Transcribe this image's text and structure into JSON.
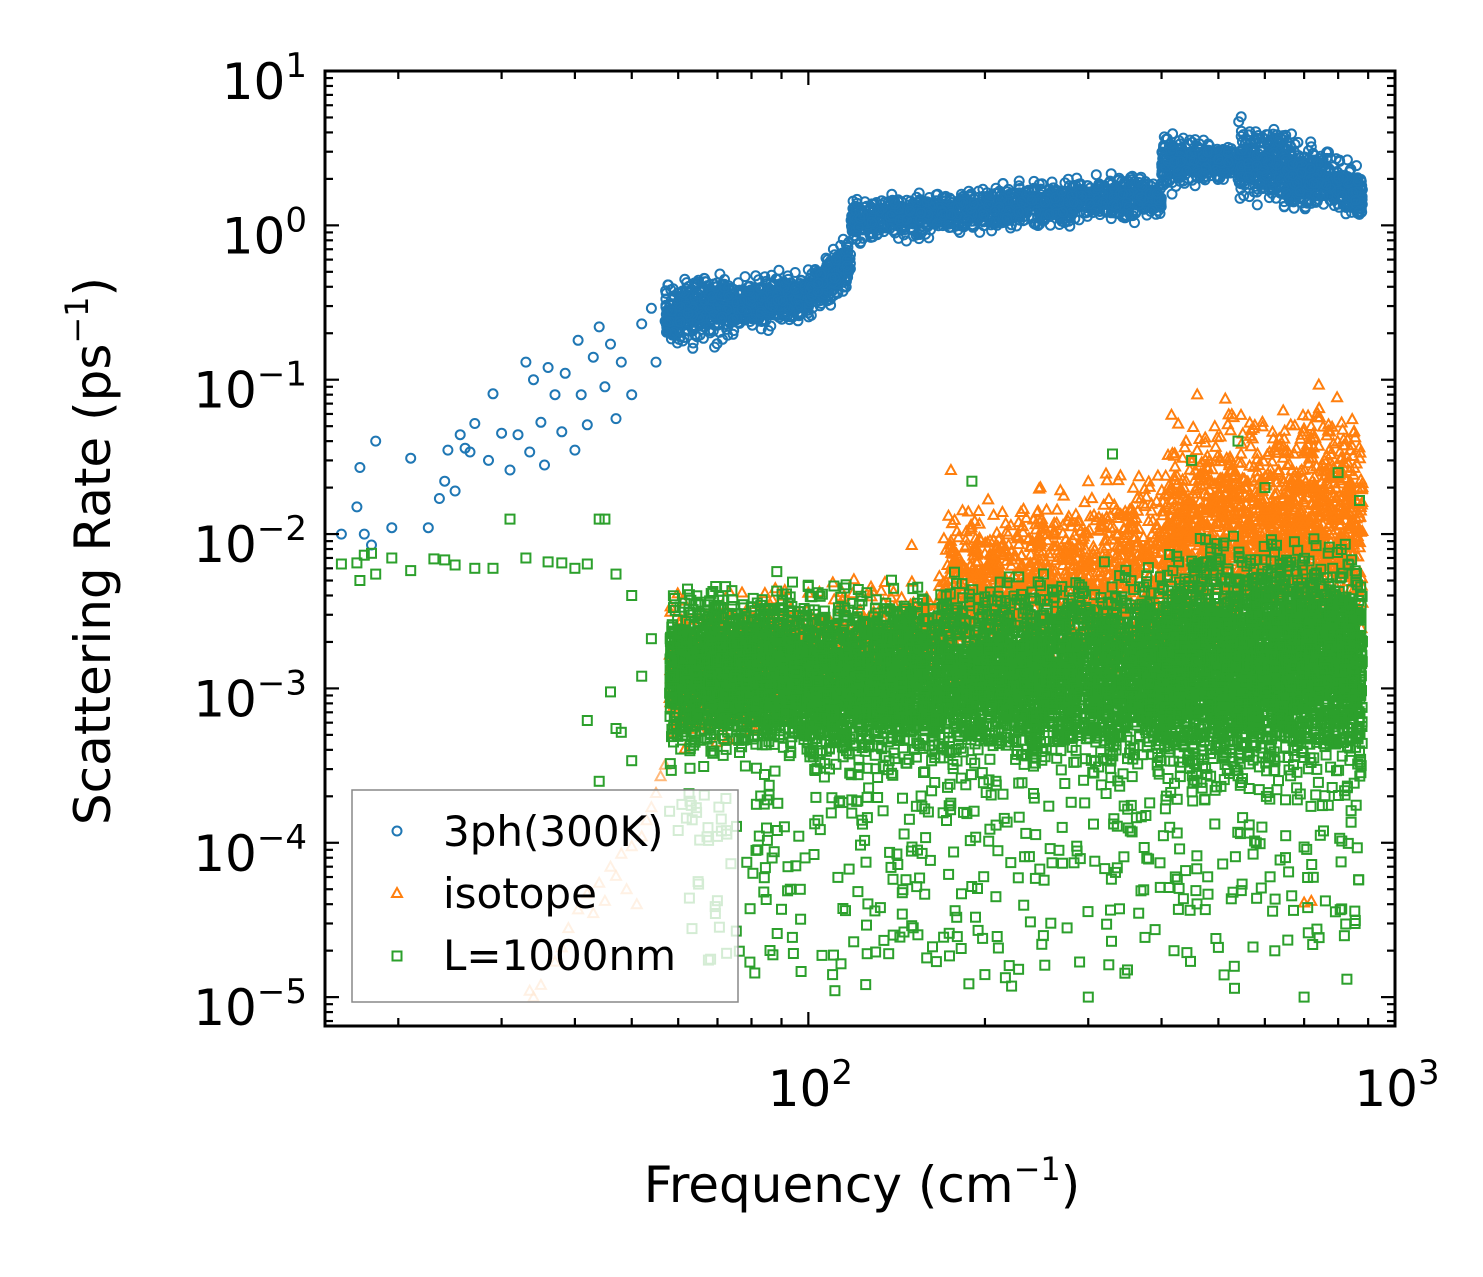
{
  "chart_data": {
    "type": "scatter",
    "title": "",
    "xlabel": "Frequency (cm",
    "xlabel_exp": "−1",
    "xlabel_tail": ")",
    "ylabel": "Scattering Rate (ps",
    "ylabel_exp": "−1",
    "ylabel_tail": ")",
    "xscale": "log",
    "yscale": "log",
    "xlim": [
      15,
      1000
    ],
    "ylim": [
      6.5e-06,
      10
    ],
    "grid": false,
    "legend_position": "lower-left",
    "x_major_ticks": [
      {
        "value": 100,
        "base": "10",
        "exp": "2"
      },
      {
        "value": 1000,
        "base": "10",
        "exp": "3"
      }
    ],
    "y_major_ticks": [
      {
        "value": 10,
        "base": "10",
        "exp": "1"
      },
      {
        "value": 1,
        "base": "10",
        "exp": "0"
      },
      {
        "value": 0.1,
        "base": "10",
        "exp": "−1"
      },
      {
        "value": 0.01,
        "base": "10",
        "exp": "−2"
      },
      {
        "value": 0.001,
        "base": "10",
        "exp": "−3"
      },
      {
        "value": 0.0001,
        "base": "10",
        "exp": "−4"
      },
      {
        "value": 1e-05,
        "base": "10",
        "exp": "−5"
      }
    ],
    "series": [
      {
        "name": "3ph(300K)",
        "marker": "circle",
        "color": "#1f77b4",
        "points": [
          [
            16,
            0.01
          ],
          [
            17,
            0.015
          ],
          [
            17.2,
            0.027
          ],
          [
            17.5,
            0.01
          ],
          [
            18,
            0.0085
          ],
          [
            18.3,
            0.04
          ],
          [
            19.5,
            0.011
          ],
          [
            21,
            0.031
          ],
          [
            22.5,
            0.011
          ],
          [
            23.5,
            0.017
          ],
          [
            24,
            0.022
          ],
          [
            24.3,
            0.035
          ],
          [
            25,
            0.019
          ],
          [
            25.5,
            0.044
          ],
          [
            26,
            0.036
          ],
          [
            26.5,
            0.034
          ],
          [
            27,
            0.052
          ],
          [
            28.5,
            0.03
          ],
          [
            29,
            0.081
          ],
          [
            30,
            0.045
          ],
          [
            31,
            0.026
          ],
          [
            32,
            0.044
          ],
          [
            33,
            0.13
          ],
          [
            33.5,
            0.034
          ],
          [
            34,
            0.1
          ],
          [
            35,
            0.053
          ],
          [
            35.5,
            0.028
          ],
          [
            36,
            0.12
          ],
          [
            37,
            0.08
          ],
          [
            38,
            0.046
          ],
          [
            38.5,
            0.11
          ],
          [
            40,
            0.035
          ],
          [
            40.5,
            0.18
          ],
          [
            41,
            0.08
          ],
          [
            42,
            0.051
          ],
          [
            43,
            0.14
          ],
          [
            44,
            0.22
          ],
          [
            45,
            0.09
          ],
          [
            46,
            0.17
          ],
          [
            47,
            0.056
          ],
          [
            48,
            0.13
          ],
          [
            50,
            0.08
          ],
          [
            52,
            0.23
          ],
          [
            54,
            0.29
          ],
          [
            55,
            0.13
          ]
        ],
        "bands": [
          {
            "x": [
              57,
              100
            ],
            "lo": [
              0.12,
              0.22
            ],
            "hi": [
              0.55,
              0.55
            ],
            "n": 700
          },
          {
            "x": [
              100,
              118
            ],
            "lo": [
              0.22,
              0.35
            ],
            "hi": [
              0.55,
              0.95
            ],
            "n": 250
          },
          {
            "x": [
              118,
              400
            ],
            "lo": [
              0.7,
              1.0
            ],
            "hi": [
              1.6,
              2.4
            ],
            "n": 1200
          },
          {
            "x": [
              400,
              540
            ],
            "lo": [
              1.4,
              2.0
            ],
            "hi": [
              4.6,
              3.2
            ],
            "n": 400
          },
          {
            "x": [
              540,
              880
            ],
            "lo": [
              1.3,
              1.0
            ],
            "hi": [
              5.8,
              2.5
            ],
            "n": 700
          }
        ]
      },
      {
        "name": "isotope",
        "marker": "triangle",
        "color": "#ff7f0e",
        "points": [
          [
            33.5,
            1.1e-05
          ],
          [
            34,
            1e-05
          ],
          [
            35,
            1.2e-05
          ],
          [
            37,
            1.7e-05
          ],
          [
            38,
            2.1e-05
          ],
          [
            39,
            2.8e-05
          ],
          [
            40.5,
            3.7e-05
          ],
          [
            42,
            4.7e-05
          ],
          [
            43,
            3.5e-05
          ],
          [
            44,
            5.5e-05
          ],
          [
            45,
            4.2e-05
          ],
          [
            46,
            7e-05
          ],
          [
            47,
            6.1e-05
          ],
          [
            48,
            8.5e-05
          ],
          [
            49,
            5e-05
          ],
          [
            50,
            9.5e-05
          ],
          [
            51,
            4e-05
          ],
          [
            52,
            0.00011
          ],
          [
            53,
            0.00014
          ],
          [
            54,
            0.00017
          ],
          [
            55,
            0.00021
          ],
          [
            56,
            0.00027
          ],
          [
            57,
            0.00032
          ],
          [
            150,
            0.0085
          ],
          [
            175,
            0.026
          ],
          [
            300,
            0.022
          ],
          [
            460,
            0.035
          ],
          [
            700,
            4.1e-05
          ],
          [
            720,
            4.2e-05
          ]
        ],
        "bands": [
          {
            "x": [
              58,
              95
            ],
            "lo": [
              0.0002,
              0.0005
            ],
            "hi": [
              0.005,
              0.006
            ],
            "n": 500
          },
          {
            "x": [
              95,
              170
            ],
            "lo": [
              0.0005,
              0.0008
            ],
            "hi": [
              0.005,
              0.007
            ],
            "n": 500
          },
          {
            "x": [
              170,
              400
            ],
            "lo": [
              0.0008,
              0.001
            ],
            "hi": [
              0.02,
              0.035
            ],
            "n": 1100
          },
          {
            "x": [
              400,
              880
            ],
            "lo": [
              0.001,
              0.0015
            ],
            "hi": [
              0.09,
              0.11
            ],
            "n": 1500
          }
        ]
      },
      {
        "name": "L=1000nm",
        "marker": "square",
        "color": "#2ca02c",
        "points": [
          [
            16,
            0.0064
          ],
          [
            17,
            0.0065
          ],
          [
            17.2,
            0.005
          ],
          [
            17.5,
            0.0073
          ],
          [
            18,
            0.0075
          ],
          [
            18.3,
            0.0055
          ],
          [
            19.5,
            0.007
          ],
          [
            21,
            0.0058
          ],
          [
            23,
            0.0069
          ],
          [
            24,
            0.0068
          ],
          [
            25,
            0.0063
          ],
          [
            27,
            0.006
          ],
          [
            29,
            0.006
          ],
          [
            31,
            0.0125
          ],
          [
            33,
            0.007
          ],
          [
            36,
            0.0066
          ],
          [
            38,
            0.0065
          ],
          [
            40,
            0.006
          ],
          [
            42,
            0.0064
          ],
          [
            44,
            0.0125
          ],
          [
            45,
            0.0125
          ],
          [
            47,
            0.0055
          ],
          [
            50,
            0.004
          ],
          [
            42,
            0.00062
          ],
          [
            44,
            0.00025
          ],
          [
            46,
            0.00095
          ],
          [
            47,
            0.00055
          ],
          [
            48,
            0.00052
          ],
          [
            50,
            0.00034
          ],
          [
            52,
            0.0012
          ],
          [
            54,
            0.0021
          ],
          [
            58,
            0.00016
          ],
          [
            60,
            0.00012
          ],
          [
            65,
            5.4e-05
          ],
          [
            70,
            0.00011
          ],
          [
            82,
            9e-05
          ],
          [
            97,
            3.2e-05
          ],
          [
            110,
            1.4e-05
          ],
          [
            111,
            1.1e-05
          ],
          [
            150,
            2.9e-05
          ],
          [
            200,
            1.4e-05
          ],
          [
            220,
            1.6e-05
          ],
          [
            250,
            2.2e-05
          ],
          [
            300,
            1e-05
          ],
          [
            350,
            1.5e-05
          ],
          [
            420,
            2e-05
          ],
          [
            500,
            2.1e-05
          ],
          [
            700,
            1e-05
          ],
          [
            710,
            3.8e-05
          ],
          [
            820,
            2.5e-05
          ],
          [
            855,
            3e-05
          ],
          [
            190,
            0.022
          ],
          [
            330,
            0.033
          ],
          [
            450,
            0.03
          ],
          [
            540,
            0.04
          ],
          [
            600,
            0.02
          ],
          [
            800,
            0.025
          ],
          [
            870,
            0.0165
          ]
        ],
        "bands": [
          {
            "x": [
              58,
              100
            ],
            "lo": [
              0.00025,
              0.00025
            ],
            "hi": [
              0.006,
              0.006
            ],
            "n": 1500
          },
          {
            "x": [
              100,
              400
            ],
            "lo": [
              0.0002,
              0.00018
            ],
            "hi": [
              0.006,
              0.008
            ],
            "n": 3500
          },
          {
            "x": [
              400,
              880
            ],
            "lo": [
              0.00015,
              0.00018
            ],
            "hi": [
              0.012,
              0.012
            ],
            "n": 3000
          }
        ],
        "sparse_low": {
          "x": [
            60,
            880
          ],
          "lo": 1e-05,
          "hi": 0.00025,
          "n": 380
        }
      }
    ]
  }
}
